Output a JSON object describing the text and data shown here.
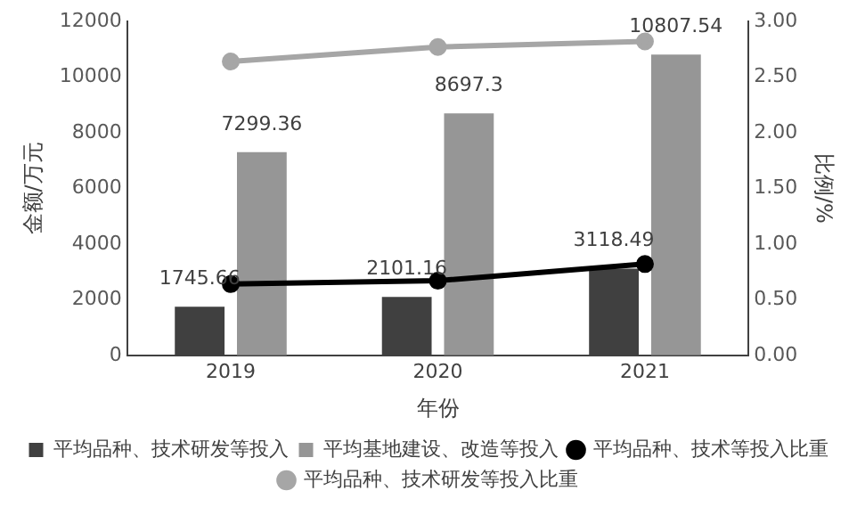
{
  "chart_data": {
    "type": "bar",
    "xlabel": "年份",
    "ylabel": "金额/万元",
    "y2label": "比例/%",
    "categories": [
      "2019",
      "2020",
      "2021"
    ],
    "series": [
      {
        "name": "平均品种、技术研发等投入",
        "color": "#404040",
        "values": [
          1745.66,
          2101.16,
          3118.49
        ],
        "value_labels": [
          "1745.66",
          "2101.16",
          "3118.49"
        ]
      },
      {
        "name": "平均基地建设、改造等投入",
        "color": "#969696",
        "values": [
          7299.36,
          8697.3,
          10807.54
        ],
        "value_labels": [
          "7299.36",
          "8697.3",
          "10807.54"
        ]
      },
      {
        "name": "平均品种、技术等投入比重",
        "type": "line",
        "axis": "y2",
        "color": "#000000",
        "values": [
          0.64,
          0.67,
          0.82
        ]
      },
      {
        "name": "平均品种、技术研发等投入比重",
        "type": "line",
        "axis": "y2",
        "color": "#a6a6a6",
        "values": [
          2.64,
          2.77,
          2.82
        ]
      }
    ],
    "ylim": [
      0,
      12000
    ],
    "yticks": [
      0,
      2000,
      4000,
      6000,
      8000,
      10000,
      12000
    ],
    "y2lim": [
      0,
      3
    ],
    "y2ticks": [
      {
        "value": 0,
        "label": "0.00"
      },
      {
        "value": 0.5,
        "label": "0.50"
      },
      {
        "value": 1,
        "label": "1.00"
      },
      {
        "value": 1.5,
        "label": "1.50"
      },
      {
        "value": 2,
        "label": "2.00"
      },
      {
        "value": 2.5,
        "label": "2.50"
      },
      {
        "value": 3,
        "label": "3.00"
      }
    ],
    "grid": false,
    "legend": "bottom",
    "marker": "circle"
  }
}
